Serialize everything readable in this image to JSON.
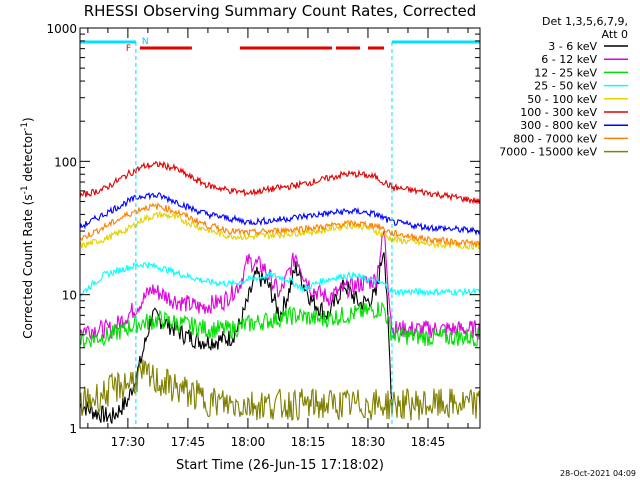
{
  "chart_data": {
    "type": "line",
    "title": "RHESSI Observing Summary Count Rates, Corrected",
    "xlabel": "Start Time (26-Jun-15 17:18:02)",
    "ylabel_main": "Corrected Count Rate (s",
    "ylabel_sup1": "-1",
    "ylabel_mid": " detector",
    "ylabel_sup2": "-1",
    "ylabel_end": ")",
    "y_scale": "log",
    "ylim": [
      1,
      1000
    ],
    "xlim": [
      "17:18:02",
      "18:58:00"
    ],
    "x_ticks": [
      "17:30",
      "17:45",
      "18:00",
      "18:15",
      "18:30",
      "18:45"
    ],
    "y_ticks": [
      "1",
      "10",
      "100",
      "1000"
    ],
    "legend_header": [
      "Det 1,3,5,6,7,9,",
      "Att 0"
    ],
    "legend_position": "right",
    "footer_date": "28-Oct-2021 04:09",
    "markers": [
      {
        "label": "N",
        "time": "17:32",
        "color": "#00c8ff"
      },
      {
        "label": "F",
        "time": "17:32",
        "color": "#e00000"
      }
    ],
    "night_intervals": [
      [
        "17:18:02",
        "17:32"
      ],
      [
        "18:36",
        "18:58"
      ]
    ],
    "flare_intervals": [
      [
        "17:33",
        "17:46"
      ],
      [
        "17:58",
        "18:21"
      ],
      [
        "18:22",
        "18:28"
      ],
      [
        "18:30",
        "18:34"
      ]
    ],
    "series": [
      {
        "name": "3 - 6 keV",
        "color": "#000000",
        "x": [
          "17:18",
          "17:22",
          "17:26",
          "17:30",
          "17:33",
          "17:36",
          "17:40",
          "17:44",
          "17:48",
          "17:52",
          "17:56",
          "17:58",
          "18:00",
          "18:02",
          "18:05",
          "18:08",
          "18:10",
          "18:12",
          "18:14",
          "18:16",
          "18:18",
          "18:20",
          "18:22",
          "18:24",
          "18:26",
          "18:28",
          "18:30",
          "18:32",
          "18:34",
          "18:36"
        ],
        "y": [
          1.5,
          1.3,
          1.2,
          1.6,
          3.0,
          7.0,
          6.0,
          5.0,
          4.5,
          4.5,
          4.8,
          6.0,
          9.0,
          14.0,
          12.0,
          7.0,
          10.0,
          16.0,
          12.0,
          9.0,
          8.0,
          7.0,
          9.0,
          12.0,
          10.0,
          8.5,
          9.0,
          10.0,
          24.0,
          1.5
        ]
      },
      {
        "name": "6 - 12 keV",
        "color": "#e000e0",
        "x": [
          "17:18",
          "17:26",
          "17:32",
          "17:36",
          "17:42",
          "17:48",
          "17:54",
          "17:58",
          "18:00",
          "18:04",
          "18:08",
          "18:12",
          "18:14",
          "18:16",
          "18:20",
          "18:24",
          "18:28",
          "18:32",
          "18:34",
          "18:36",
          "18:45",
          "18:58"
        ],
        "y": [
          5.5,
          5.5,
          8.0,
          11.0,
          9.0,
          8.0,
          9.0,
          12.0,
          18.0,
          16.0,
          10.0,
          20.0,
          14.0,
          11.0,
          9.5,
          11.0,
          12.0,
          13.0,
          30.0,
          5.5,
          5.5,
          5.5
        ]
      },
      {
        "name": "12 - 25 keV",
        "color": "#00e000",
        "x": [
          "17:18",
          "17:26",
          "17:32",
          "17:38",
          "17:44",
          "17:50",
          "17:56",
          "18:00",
          "18:06",
          "18:12",
          "18:18",
          "18:24",
          "18:30",
          "18:34",
          "18:36",
          "18:45",
          "18:58"
        ],
        "y": [
          4.5,
          5.0,
          6.0,
          6.5,
          6.0,
          5.5,
          5.5,
          6.0,
          6.5,
          7.0,
          6.5,
          7.0,
          7.5,
          8.0,
          5.0,
          4.8,
          4.8
        ]
      },
      {
        "name": "25 - 50 keV",
        "color": "#00ffff",
        "x": [
          "17:18",
          "17:24",
          "17:30",
          "17:34",
          "17:38",
          "17:44",
          "17:50",
          "17:56",
          "18:00",
          "18:06",
          "18:10",
          "18:14",
          "18:18",
          "18:22",
          "18:26",
          "18:30",
          "18:34",
          "18:36",
          "18:45",
          "18:58"
        ],
        "y": [
          10.0,
          14.0,
          16.0,
          17.0,
          16.0,
          14.0,
          12.5,
          12.0,
          13.0,
          14.0,
          13.0,
          11.0,
          12.5,
          13.5,
          14.0,
          13.0,
          12.0,
          10.5,
          10.5,
          10.5
        ]
      },
      {
        "name": "50 - 100 keV",
        "color": "#e6d000",
        "x": [
          "17:18",
          "17:24",
          "17:30",
          "17:34",
          "17:38",
          "17:42",
          "17:48",
          "17:54",
          "18:00",
          "18:06",
          "18:12",
          "18:18",
          "18:24",
          "18:28",
          "18:32",
          "18:36",
          "18:45",
          "18:58"
        ],
        "y": [
          23.0,
          26.0,
          31.0,
          37.0,
          40.0,
          38.0,
          32.0,
          28.0,
          27.0,
          28.0,
          29.0,
          30.0,
          33.0,
          33.0,
          30.0,
          26.0,
          24.0,
          23.0
        ]
      },
      {
        "name": "100 - 300 keV",
        "color": "#e00000",
        "x": [
          "17:18",
          "17:24",
          "17:30",
          "17:34",
          "17:38",
          "17:42",
          "17:46",
          "17:50",
          "17:56",
          "18:00",
          "18:06",
          "18:12",
          "18:18",
          "18:24",
          "18:28",
          "18:32",
          "18:36",
          "18:45",
          "18:58"
        ],
        "y": [
          55.0,
          62.0,
          80.0,
          92.0,
          95.0,
          88.0,
          75.0,
          66.0,
          60.0,
          58.0,
          62.0,
          66.0,
          72.0,
          80.0,
          80.0,
          76.0,
          64.0,
          58.0,
          50.0
        ]
      },
      {
        "name": "300 - 800 keV",
        "color": "#0000ff",
        "x": [
          "17:18",
          "17:24",
          "17:30",
          "17:34",
          "17:38",
          "17:42",
          "17:46",
          "17:50",
          "17:56",
          "18:00",
          "18:06",
          "18:12",
          "18:18",
          "18:24",
          "18:28",
          "18:32",
          "18:36",
          "18:45",
          "18:58"
        ],
        "y": [
          32.0,
          40.0,
          50.0,
          56.0,
          55.0,
          50.0,
          44.0,
          40.0,
          37.0,
          35.0,
          36.0,
          38.0,
          40.0,
          42.0,
          42.0,
          40.0,
          35.0,
          32.0,
          30.0
        ]
      },
      {
        "name": "800 - 7000 keV",
        "color": "#ff8000",
        "x": [
          "17:18",
          "17:24",
          "17:30",
          "17:34",
          "17:38",
          "17:42",
          "17:46",
          "17:50",
          "17:56",
          "18:00",
          "18:06",
          "18:12",
          "18:18",
          "18:24",
          "18:28",
          "18:32",
          "18:36",
          "18:45",
          "18:58"
        ],
        "y": [
          26.0,
          32.0,
          40.0,
          45.0,
          46.0,
          42.0,
          37.0,
          33.0,
          30.0,
          29.0,
          30.0,
          31.0,
          32.0,
          34.0,
          34.0,
          33.0,
          29.0,
          26.0,
          24.0
        ]
      },
      {
        "name": "7000 - 15000 keV",
        "color": "#808000",
        "x": [
          "17:18",
          "17:24",
          "17:30",
          "17:34",
          "17:38",
          "17:42",
          "17:46",
          "17:50",
          "17:56",
          "18:00",
          "18:06",
          "18:12",
          "18:18",
          "18:24",
          "18:30",
          "18:35",
          "18:36",
          "18:45",
          "18:58"
        ],
        "y": [
          1.5,
          1.8,
          2.2,
          2.5,
          2.2,
          2.0,
          1.8,
          1.6,
          1.5,
          1.5,
          1.5,
          1.5,
          1.5,
          1.5,
          1.5,
          1.5,
          1.5,
          1.5,
          1.5
        ]
      }
    ]
  }
}
